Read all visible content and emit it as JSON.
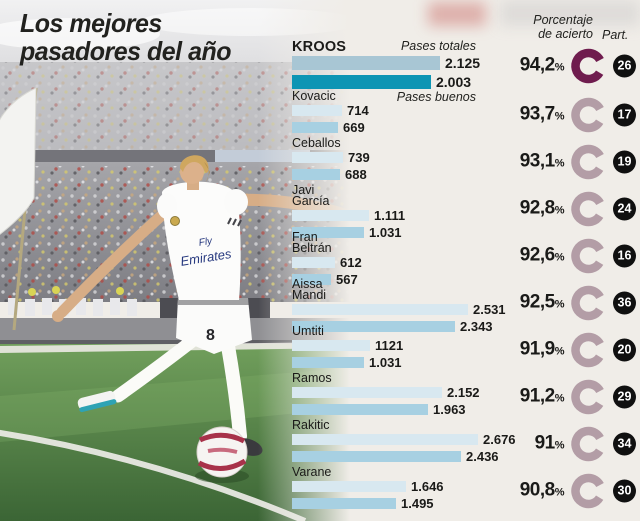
{
  "title": {
    "line1": "Los mejores",
    "line2": "pasadores del año"
  },
  "headers": {
    "accuracy_line1": "Porcentaje",
    "accuracy_line2": "de acierto",
    "matches": "Part.",
    "percent_sign": "%"
  },
  "series_labels": {
    "total": "Pases totales",
    "good": "Pases buenos"
  },
  "colors": {
    "panel_bg": "#f0ede8",
    "bar_total": "#d8e8f0",
    "bar_good": "#a7d0e2",
    "bar_total_highlight": "#a8c6d4",
    "bar_good_highlight": "#0d95b4",
    "donut": "#b39da6",
    "donut_highlight": "#6f1c4e",
    "badge_bg": "#101010",
    "badge_text": "#ffffff"
  },
  "players": [
    {
      "name_lines": [
        "KROOS"
      ],
      "highlight": true,
      "note": "Pases totales",
      "total": {
        "label": "2.125",
        "value": 2125
      },
      "good": {
        "label": "2.003",
        "value": 2003
      },
      "accuracy": "94,2",
      "matches": "26"
    },
    {
      "name_lines": [
        "Kovacic"
      ],
      "highlight": false,
      "note": "Pases buenos",
      "total": {
        "label": "714",
        "value": 714
      },
      "good": {
        "label": "669",
        "value": 669
      },
      "accuracy": "93,7",
      "matches": "17"
    },
    {
      "name_lines": [
        "Ceballos"
      ],
      "highlight": false,
      "total": {
        "label": "739",
        "value": 739
      },
      "good": {
        "label": "688",
        "value": 688
      },
      "accuracy": "93,1",
      "matches": "19"
    },
    {
      "name_lines": [
        "Javi",
        "García"
      ],
      "highlight": false,
      "total": {
        "label": "1.111",
        "value": 1111
      },
      "good": {
        "label": "1.031",
        "value": 1031
      },
      "accuracy": "92,8",
      "matches": "24"
    },
    {
      "name_lines": [
        "Fran",
        "Beltrán"
      ],
      "highlight": false,
      "total": {
        "label": "612",
        "value": 612
      },
      "good": {
        "label": "567",
        "value": 567
      },
      "accuracy": "92,6",
      "matches": "16"
    },
    {
      "name_lines": [
        "Aissa",
        "Mandi"
      ],
      "highlight": false,
      "total": {
        "label": "2.531",
        "value": 2531
      },
      "good": {
        "label": "2.343",
        "value": 2343
      },
      "accuracy": "92,5",
      "matches": "36"
    },
    {
      "name_lines": [
        "Umtiti"
      ],
      "highlight": false,
      "total": {
        "label": "1121",
        "value": 1121
      },
      "good": {
        "label": "1.031",
        "value": 1031
      },
      "accuracy": "91,9",
      "matches": "20"
    },
    {
      "name_lines": [
        "Ramos"
      ],
      "highlight": false,
      "total": {
        "label": "2.152",
        "value": 2152
      },
      "good": {
        "label": "1.963",
        "value": 1963
      },
      "accuracy": "91,2",
      "matches": "29"
    },
    {
      "name_lines": [
        "Rakitic"
      ],
      "highlight": false,
      "total": {
        "label": "2.676",
        "value": 2676
      },
      "good": {
        "label": "2.436",
        "value": 2436
      },
      "accuracy": "91",
      "matches": "34"
    },
    {
      "name_lines": [
        "Varane"
      ],
      "highlight": false,
      "total": {
        "label": "1.646",
        "value": 1646
      },
      "good": {
        "label": "1.495",
        "value": 1495
      },
      "accuracy": "90,8",
      "matches": "30"
    }
  ],
  "chart_data": {
    "type": "bar",
    "orientation": "horizontal",
    "title": "Los mejores pasadores del año",
    "categories": [
      "Kroos",
      "Kovacic",
      "Ceballos",
      "Javi García",
      "Fran Beltrán",
      "Aissa Mandi",
      "Umtiti",
      "Ramos",
      "Rakitic",
      "Varane"
    ],
    "series": [
      {
        "name": "Pases totales",
        "values": [
          2125,
          714,
          739,
          1111,
          612,
          2531,
          1121,
          2152,
          2676,
          1646
        ]
      },
      {
        "name": "Pases buenos",
        "values": [
          2003,
          669,
          688,
          1031,
          567,
          2343,
          1031,
          1963,
          2436,
          1495
        ]
      },
      {
        "name": "Porcentaje de acierto (%)",
        "values": [
          94.2,
          93.7,
          93.1,
          92.8,
          92.6,
          92.5,
          91.9,
          91.2,
          91,
          90.8
        ]
      },
      {
        "name": "Part.",
        "values": [
          26,
          17,
          19,
          24,
          16,
          36,
          20,
          29,
          34,
          30
        ]
      }
    ],
    "xlim": [
      0,
      2676
    ],
    "grid": false,
    "legend_position": "inline-top"
  }
}
